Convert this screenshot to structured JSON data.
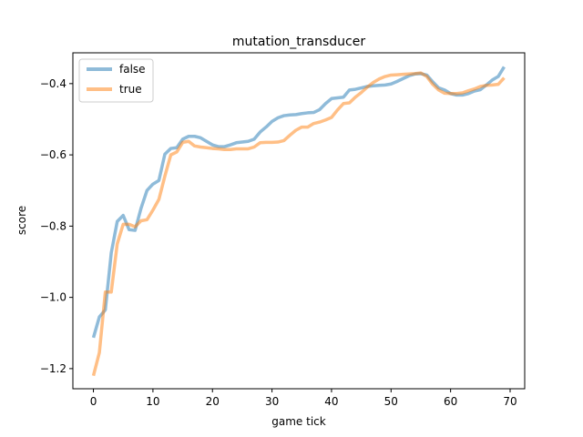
{
  "chart_data": {
    "type": "line",
    "title": "mutation_transducer",
    "xlabel": "game tick",
    "ylabel": "score",
    "xlim": [
      -3.45,
      72.45
    ],
    "ylim": [
      -1.2565,
      -0.3135
    ],
    "xticks": [
      0,
      10,
      20,
      30,
      40,
      50,
      60,
      70
    ],
    "yticks": [
      -1.2,
      -1.0,
      -0.8,
      -0.6,
      -0.4
    ],
    "xtick_labels": [
      "0",
      "10",
      "20",
      "30",
      "40",
      "50",
      "60",
      "70"
    ],
    "ytick_labels": [
      "−1.2",
      "−1.0",
      "−0.8",
      "−0.6",
      "−0.4"
    ],
    "grid": false,
    "legend_position": "upper-left",
    "series": [
      {
        "name": "false",
        "color": "#1f77b4",
        "x": [
          0,
          1,
          2,
          3,
          4,
          5,
          6,
          7,
          8,
          9,
          10,
          11,
          12,
          13,
          14,
          15,
          16,
          17,
          18,
          19,
          20,
          21,
          22,
          23,
          24,
          25,
          26,
          27,
          28,
          29,
          30,
          31,
          32,
          33,
          34,
          35,
          36,
          37,
          38,
          39,
          40,
          41,
          42,
          43,
          44,
          45,
          46,
          47,
          48,
          49,
          50,
          51,
          52,
          53,
          54,
          55,
          56,
          57,
          58,
          59,
          60,
          61,
          62,
          63,
          64,
          65,
          66,
          67,
          68,
          69
        ],
        "values": [
          -1.113,
          -1.055,
          -1.035,
          -0.875,
          -0.787,
          -0.77,
          -0.81,
          -0.812,
          -0.75,
          -0.7,
          -0.682,
          -0.672,
          -0.598,
          -0.582,
          -0.58,
          -0.556,
          -0.548,
          -0.548,
          -0.552,
          -0.562,
          -0.572,
          -0.577,
          -0.577,
          -0.572,
          -0.566,
          -0.564,
          -0.562,
          -0.556,
          -0.536,
          -0.522,
          -0.506,
          -0.496,
          -0.49,
          -0.488,
          -0.487,
          -0.484,
          -0.482,
          -0.481,
          -0.473,
          -0.456,
          -0.442,
          -0.44,
          -0.438,
          -0.418,
          -0.416,
          -0.412,
          -0.408,
          -0.406,
          -0.405,
          -0.404,
          -0.401,
          -0.394,
          -0.386,
          -0.378,
          -0.373,
          -0.372,
          -0.376,
          -0.395,
          -0.412,
          -0.418,
          -0.428,
          -0.432,
          -0.432,
          -0.428,
          -0.421,
          -0.417,
          -0.404,
          -0.39,
          -0.38,
          -0.353
        ]
      },
      {
        "name": "true",
        "color": "#ff7f0e",
        "x": [
          0,
          1,
          2,
          3,
          4,
          5,
          6,
          7,
          8,
          9,
          10,
          11,
          12,
          13,
          14,
          15,
          16,
          17,
          18,
          19,
          20,
          21,
          22,
          23,
          24,
          25,
          26,
          27,
          28,
          29,
          30,
          31,
          32,
          33,
          34,
          35,
          36,
          37,
          38,
          39,
          40,
          41,
          42,
          43,
          44,
          45,
          46,
          47,
          48,
          49,
          50,
          51,
          52,
          53,
          54,
          55,
          56,
          57,
          58,
          59,
          60,
          61,
          62,
          63,
          64,
          65,
          66,
          67,
          68,
          69
        ],
        "values": [
          -1.22,
          -1.155,
          -0.985,
          -0.985,
          -0.85,
          -0.795,
          -0.795,
          -0.802,
          -0.785,
          -0.782,
          -0.755,
          -0.725,
          -0.66,
          -0.6,
          -0.592,
          -0.565,
          -0.562,
          -0.575,
          -0.578,
          -0.58,
          -0.582,
          -0.583,
          -0.585,
          -0.585,
          -0.583,
          -0.583,
          -0.583,
          -0.578,
          -0.566,
          -0.565,
          -0.565,
          -0.564,
          -0.56,
          -0.545,
          -0.531,
          -0.522,
          -0.522,
          -0.512,
          -0.508,
          -0.502,
          -0.495,
          -0.474,
          -0.456,
          -0.454,
          -0.438,
          -0.425,
          -0.41,
          -0.397,
          -0.387,
          -0.38,
          -0.376,
          -0.375,
          -0.374,
          -0.373,
          -0.372,
          -0.37,
          -0.38,
          -0.402,
          -0.418,
          -0.427,
          -0.428,
          -0.428,
          -0.426,
          -0.42,
          -0.415,
          -0.408,
          -0.405,
          -0.404,
          -0.402,
          -0.384
        ]
      }
    ]
  }
}
